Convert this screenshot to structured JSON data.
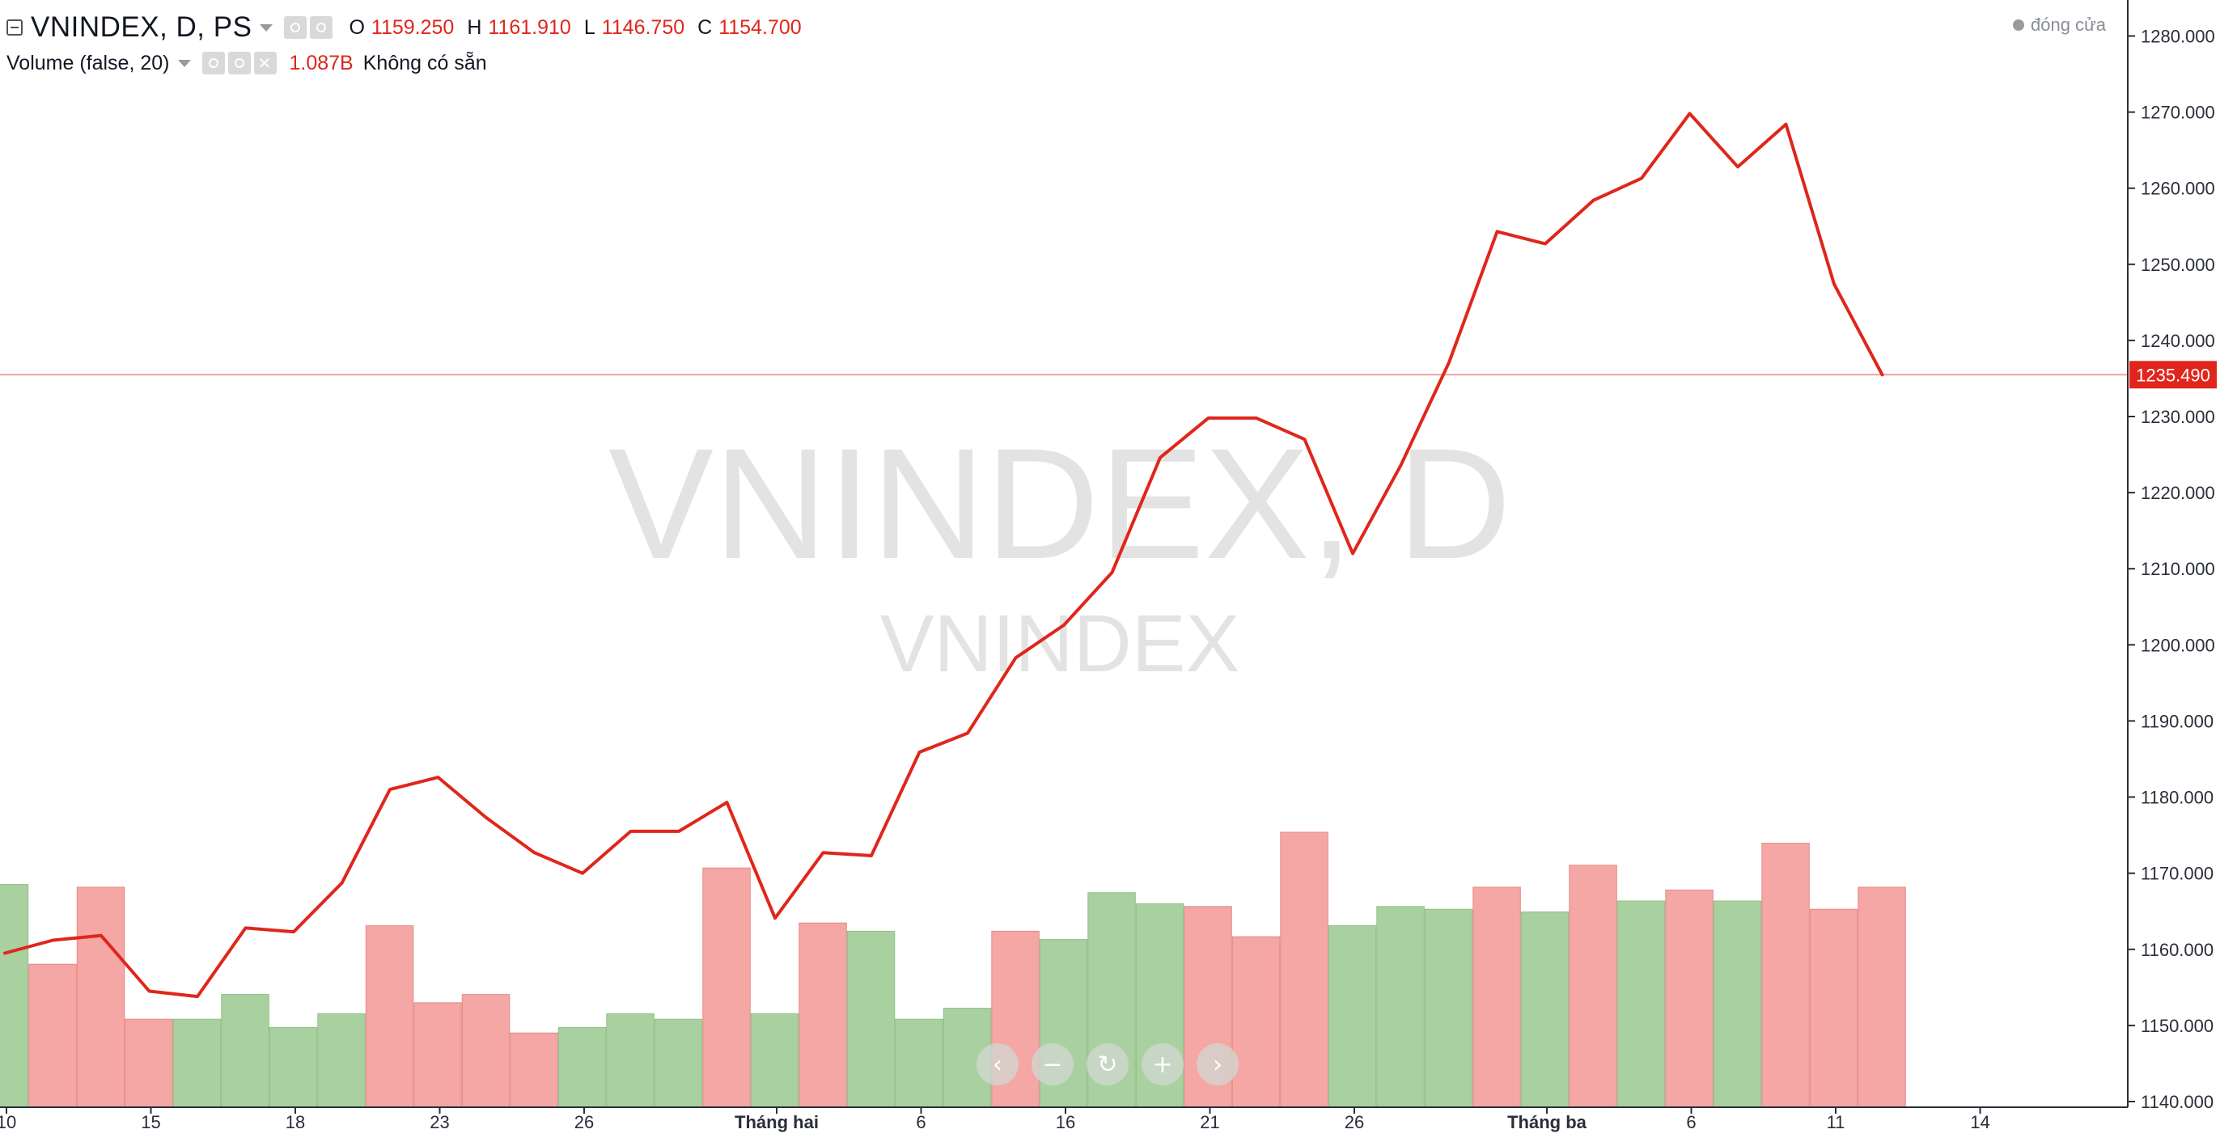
{
  "header": {
    "title": "VNINDEX, D, PS",
    "ohlc": [
      {
        "key": "O",
        "value": "1159.250"
      },
      {
        "key": "H",
        "value": "1161.910"
      },
      {
        "key": "L",
        "value": "1146.750"
      },
      {
        "key": "C",
        "value": "1154.700"
      }
    ],
    "status": "đóng cửa"
  },
  "volume_legend": {
    "label": "Volume (false, 20)",
    "value": "1.087B",
    "note": "Không có sẵn"
  },
  "watermark": {
    "main": "VNINDEX, D",
    "sub": "VNINDEX"
  },
  "price_label": "1235.490",
  "colors": {
    "line": "#e0261c",
    "up_volume": "#a9d1a0",
    "down_volume": "#f4a7a4",
    "grid_text": "#2a2e39",
    "axis_bg": "#ffffff"
  },
  "navigation": {
    "icons": [
      "chevron-left-icon",
      "zoom-out-icon",
      "reset-icon",
      "zoom-in-icon",
      "chevron-right-icon"
    ],
    "glyphs": [
      "‹",
      "−",
      "↻",
      "+",
      "›"
    ]
  },
  "chart_data": {
    "type": "line",
    "title": "VNINDEX, D",
    "ylim": [
      1138,
      1285
    ],
    "y_ticks": [
      "1280.000",
      "1270.000",
      "1260.000",
      "1250.000",
      "1240.000",
      "1230.000",
      "1220.000",
      "1210.000",
      "1200.000",
      "1190.000",
      "1180.000",
      "1170.000",
      "1160.000",
      "1150.000",
      "1140.000"
    ],
    "y_tick_values": [
      1280,
      1270,
      1260,
      1250,
      1240,
      1230,
      1220,
      1210,
      1200,
      1190,
      1180,
      1170,
      1160,
      1150,
      1140
    ],
    "x_ticks": [
      {
        "label": "10",
        "index": 0.5,
        "bold": false
      },
      {
        "label": "15",
        "index": 3.5,
        "bold": false
      },
      {
        "label": "18",
        "index": 6.5,
        "bold": false
      },
      {
        "label": "23",
        "index": 9.5,
        "bold": false
      },
      {
        "label": "26",
        "index": 12.5,
        "bold": false
      },
      {
        "label": "Tháng hai",
        "index": 16.5,
        "bold": true
      },
      {
        "label": "6",
        "index": 19.5,
        "bold": false
      },
      {
        "label": "16",
        "index": 22.5,
        "bold": false
      },
      {
        "label": "21",
        "index": 25.5,
        "bold": false
      },
      {
        "label": "26",
        "index": 28.5,
        "bold": false
      },
      {
        "label": "Tháng ba",
        "index": 32.5,
        "bold": true
      },
      {
        "label": "6",
        "index": 35.5,
        "bold": false
      },
      {
        "label": "11",
        "index": 38.5,
        "bold": false
      },
      {
        "label": "14",
        "index": 41.5,
        "bold": false
      }
    ],
    "series": [
      {
        "name": "VNINDEX",
        "values": [
          1159.5,
          1161.2,
          1161.8,
          1154.5,
          1153.8,
          1162.8,
          1162.3,
          1168.7,
          1181.0,
          1182.6,
          1177.3,
          1172.7,
          1170.0,
          1175.5,
          1175.5,
          1179.3,
          1164.1,
          1172.7,
          1172.3,
          1185.9,
          1188.4,
          1198.3,
          1202.6,
          1209.5,
          1224.6,
          1229.8,
          1229.8,
          1227.0,
          1212.0,
          1223.6,
          1237.1,
          1254.3,
          1252.7,
          1258.4,
          1261.3,
          1269.8,
          1262.8,
          1268.4,
          1247.4,
          1235.49
        ]
      }
    ],
    "volume": {
      "heights": [
        0.81,
        0.52,
        0.8,
        0.32,
        0.32,
        0.41,
        0.29,
        0.34,
        0.66,
        0.38,
        0.41,
        0.27,
        0.29,
        0.34,
        0.32,
        0.87,
        0.34,
        0.67,
        0.64,
        0.32,
        0.36,
        0.64,
        0.61,
        0.78,
        0.74,
        0.73,
        0.62,
        1.0,
        0.66,
        0.73,
        0.72,
        0.8,
        0.71,
        0.88,
        0.75,
        0.79,
        0.75,
        0.96,
        0.72,
        0.8
      ],
      "direction": [
        "up",
        "down",
        "down",
        "down",
        "up",
        "up",
        "up",
        "up",
        "down",
        "down",
        "down",
        "down",
        "up",
        "up",
        "up",
        "down",
        "up",
        "down",
        "up",
        "up",
        "up",
        "down",
        "up",
        "up",
        "up",
        "down",
        "down",
        "down",
        "up",
        "up",
        "up",
        "down",
        "up",
        "down",
        "up",
        "down",
        "up",
        "down",
        "down",
        "down"
      ]
    }
  }
}
